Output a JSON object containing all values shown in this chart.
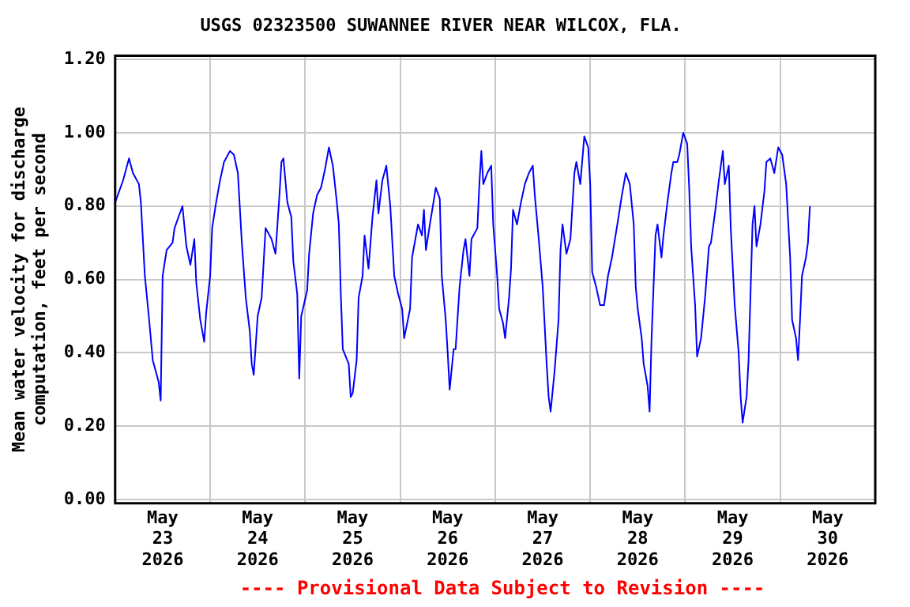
{
  "chart_data": {
    "type": "line",
    "title": "USGS 02323500 SUWANNEE RIVER NEAR WILCOX, FLA.",
    "ylabel": "Mean water velocity for discharge\ncomputation, feet per second",
    "annotations": [
      "---- Provisional Data Subject to Revision ----"
    ],
    "xlim": [
      "2026-05-23T00:00",
      "2026-05-31T00:00"
    ],
    "xticks": [
      {
        "value": "2026-05-23T00:00",
        "label": null
      },
      {
        "value": "2026-05-23T12:00",
        "label": "May\n23\n2026"
      },
      {
        "value": "2026-05-24T00:00",
        "label": null
      },
      {
        "value": "2026-05-24T12:00",
        "label": "May\n24\n2026"
      },
      {
        "value": "2026-05-25T00:00",
        "label": null
      },
      {
        "value": "2026-05-25T12:00",
        "label": "May\n25\n2026"
      },
      {
        "value": "2026-05-26T00:00",
        "label": null
      },
      {
        "value": "2026-05-26T12:00",
        "label": "May\n26\n2026"
      },
      {
        "value": "2026-05-27T00:00",
        "label": null
      },
      {
        "value": "2026-05-27T12:00",
        "label": "May\n27\n2026"
      },
      {
        "value": "2026-05-28T00:00",
        "label": null
      },
      {
        "value": "2026-05-28T12:00",
        "label": "May\n28\n2026"
      },
      {
        "value": "2026-05-29T00:00",
        "label": null
      },
      {
        "value": "2026-05-29T12:00",
        "label": "May\n29\n2026"
      },
      {
        "value": "2026-05-30T00:00",
        "label": null
      },
      {
        "value": "2026-05-30T12:00",
        "label": "May\n30\n2026"
      },
      {
        "value": "2026-05-31T00:00",
        "label": null
      }
    ],
    "ylim": [
      -0.01,
      1.21
    ],
    "yticks": [
      {
        "value": 0,
        "label": "0.00"
      },
      {
        "value": 0.2,
        "label": "0.20"
      },
      {
        "value": 0.4,
        "label": "0.40"
      },
      {
        "value": 0.6,
        "label": "0.60"
      },
      {
        "value": 0.8,
        "label": "0.80"
      },
      {
        "value": 1.0,
        "label": "1.00"
      },
      {
        "value": 1.2,
        "label": "1.20"
      }
    ],
    "grid": true,
    "legend": false,
    "marker": "none",
    "line_style": "solid",
    "x": [
      "2026-05-23T00:00",
      "2026-05-23T02:00",
      "2026-05-23T03:30",
      "2026-05-23T04:30",
      "2026-05-23T06:00",
      "2026-05-23T06:30",
      "2026-05-23T07:30",
      "2026-05-23T08:30",
      "2026-05-23T09:30",
      "2026-05-23T11:00",
      "2026-05-23T11:30",
      "2026-05-23T12:00",
      "2026-05-23T13:00",
      "2026-05-23T14:30",
      "2026-05-23T15:00",
      "2026-05-23T17:00",
      "2026-05-23T18:00",
      "2026-05-23T19:00",
      "2026-05-23T20:00",
      "2026-05-23T20:30",
      "2026-05-23T21:30",
      "2026-05-23T22:30",
      "2026-05-23T23:00",
      "2026-05-24T00:00",
      "2026-05-24T00:30",
      "2026-05-24T01:30",
      "2026-05-24T02:30",
      "2026-05-24T03:30",
      "2026-05-24T05:00",
      "2026-05-24T06:00",
      "2026-05-24T07:00",
      "2026-05-24T08:00",
      "2026-05-24T09:00",
      "2026-05-24T10:00",
      "2026-05-24T10:30",
      "2026-05-24T11:00",
      "2026-05-24T12:00",
      "2026-05-24T13:00",
      "2026-05-24T14:00",
      "2026-05-24T15:30",
      "2026-05-24T16:30",
      "2026-05-24T17:00",
      "2026-05-24T17:30",
      "2026-05-24T18:00",
      "2026-05-24T18:30",
      "2026-05-24T19:30",
      "2026-05-24T20:30",
      "2026-05-24T21:00",
      "2026-05-24T22:00",
      "2026-05-24T22:30",
      "2026-05-24T23:00",
      "2026-05-25T00:30",
      "2026-05-25T01:00",
      "2026-05-25T02:00",
      "2026-05-25T03:00",
      "2026-05-25T04:00",
      "2026-05-25T05:00",
      "2026-05-25T06:00",
      "2026-05-25T07:00",
      "2026-05-25T08:00",
      "2026-05-25T08:30",
      "2026-05-25T09:00",
      "2026-05-25T09:30",
      "2026-05-25T11:00",
      "2026-05-25T11:30",
      "2026-05-25T12:00",
      "2026-05-25T13:00",
      "2026-05-25T13:30",
      "2026-05-25T14:30",
      "2026-05-25T15:00",
      "2026-05-25T16:00",
      "2026-05-25T17:00",
      "2026-05-25T18:00",
      "2026-05-25T18:30",
      "2026-05-25T19:30",
      "2026-05-25T20:30",
      "2026-05-25T21:30",
      "2026-05-25T22:30",
      "2026-05-25T23:30",
      "2026-05-26T00:30",
      "2026-05-26T01:00",
      "2026-05-26T02:30",
      "2026-05-26T03:00",
      "2026-05-26T04:30",
      "2026-05-26T05:30",
      "2026-05-26T06:00",
      "2026-05-26T06:30",
      "2026-05-26T07:30",
      "2026-05-26T09:00",
      "2026-05-26T10:00",
      "2026-05-26T10:30",
      "2026-05-26T11:30",
      "2026-05-26T12:00",
      "2026-05-26T12:30",
      "2026-05-26T13:30",
      "2026-05-26T14:00",
      "2026-05-26T15:00",
      "2026-05-26T16:00",
      "2026-05-26T16:30",
      "2026-05-26T17:30",
      "2026-05-26T18:00",
      "2026-05-26T19:30",
      "2026-05-26T20:00",
      "2026-05-26T20:30",
      "2026-05-26T21:00",
      "2026-05-26T22:00",
      "2026-05-26T23:00",
      "2026-05-26T23:30",
      "2026-05-27T00:30",
      "2026-05-27T01:00",
      "2026-05-27T02:00",
      "2026-05-27T02:30",
      "2026-05-27T03:30",
      "2026-05-27T04:00",
      "2026-05-27T04:30",
      "2026-05-27T05:30",
      "2026-05-27T06:30",
      "2026-05-27T07:30",
      "2026-05-27T08:30",
      "2026-05-27T09:30",
      "2026-05-27T10:00",
      "2026-05-27T11:00",
      "2026-05-27T12:00",
      "2026-05-27T13:00",
      "2026-05-27T13:30",
      "2026-05-27T14:00",
      "2026-05-27T15:00",
      "2026-05-27T16:00",
      "2026-05-27T16:30",
      "2026-05-27T17:00",
      "2026-05-27T18:00",
      "2026-05-27T19:00",
      "2026-05-27T20:00",
      "2026-05-27T20:30",
      "2026-05-27T21:30",
      "2026-05-27T22:30",
      "2026-05-27T23:30",
      "2026-05-28T00:00",
      "2026-05-28T00:30",
      "2026-05-28T01:30",
      "2026-05-28T02:30",
      "2026-05-28T03:30",
      "2026-05-28T04:30",
      "2026-05-28T05:30",
      "2026-05-28T07:00",
      "2026-05-28T08:00",
      "2026-05-28T09:00",
      "2026-05-28T10:00",
      "2026-05-28T11:00",
      "2026-05-28T11:30",
      "2026-05-28T12:00",
      "2026-05-28T13:00",
      "2026-05-28T13:30",
      "2026-05-28T14:30",
      "2026-05-28T15:00",
      "2026-05-28T15:30",
      "2026-05-28T16:30",
      "2026-05-28T17:00",
      "2026-05-28T18:00",
      "2026-05-28T18:30",
      "2026-05-28T19:30",
      "2026-05-28T20:30",
      "2026-05-28T21:00",
      "2026-05-28T22:00",
      "2026-05-28T22:30",
      "2026-05-28T23:30",
      "2026-05-29T00:30",
      "2026-05-29T01:00",
      "2026-05-29T01:30",
      "2026-05-29T02:30",
      "2026-05-29T03:00",
      "2026-05-29T04:00",
      "2026-05-29T05:00",
      "2026-05-29T06:00",
      "2026-05-29T06:30",
      "2026-05-29T07:30",
      "2026-05-29T08:30",
      "2026-05-29T09:30",
      "2026-05-29T10:00",
      "2026-05-29T11:00",
      "2026-05-29T11:30",
      "2026-05-29T12:30",
      "2026-05-29T13:30",
      "2026-05-29T14:00",
      "2026-05-29T14:30",
      "2026-05-29T15:30",
      "2026-05-29T16:00",
      "2026-05-29T17:00",
      "2026-05-29T17:30",
      "2026-05-29T18:00",
      "2026-05-29T19:00",
      "2026-05-29T20:00",
      "2026-05-29T20:30",
      "2026-05-29T21:30",
      "2026-05-29T22:30",
      "2026-05-29T23:30",
      "2026-05-30T00:30",
      "2026-05-30T01:30",
      "2026-05-30T02:30",
      "2026-05-30T03:00",
      "2026-05-30T04:00",
      "2026-05-30T04:30",
      "2026-05-30T05:00",
      "2026-05-30T05:30",
      "2026-05-30T06:30",
      "2026-05-30T07:00",
      "2026-05-30T07:30"
    ],
    "series": [
      {
        "color": "#0000ff",
        "values": [
          0.81,
          0.87,
          0.93,
          0.89,
          0.86,
          0.81,
          0.61,
          0.5,
          0.38,
          0.32,
          0.27,
          0.61,
          0.68,
          0.7,
          0.74,
          0.8,
          0.69,
          0.64,
          0.71,
          0.59,
          0.49,
          0.43,
          0.51,
          0.61,
          0.74,
          0.81,
          0.87,
          0.92,
          0.95,
          0.94,
          0.89,
          0.7,
          0.55,
          0.46,
          0.37,
          0.34,
          0.5,
          0.55,
          0.74,
          0.71,
          0.67,
          0.75,
          0.83,
          0.92,
          0.93,
          0.81,
          0.77,
          0.65,
          0.56,
          0.33,
          0.5,
          0.57,
          0.67,
          0.78,
          0.83,
          0.85,
          0.9,
          0.96,
          0.91,
          0.81,
          0.75,
          0.56,
          0.41,
          0.37,
          0.28,
          0.29,
          0.38,
          0.55,
          0.61,
          0.72,
          0.63,
          0.77,
          0.87,
          0.78,
          0.87,
          0.91,
          0.8,
          0.61,
          0.56,
          0.52,
          0.44,
          0.52,
          0.66,
          0.75,
          0.72,
          0.79,
          0.68,
          0.75,
          0.85,
          0.82,
          0.61,
          0.49,
          0.4,
          0.3,
          0.41,
          0.41,
          0.58,
          0.68,
          0.71,
          0.61,
          0.71,
          0.74,
          0.86,
          0.95,
          0.86,
          0.89,
          0.91,
          0.75,
          0.61,
          0.52,
          0.48,
          0.44,
          0.55,
          0.63,
          0.79,
          0.75,
          0.81,
          0.86,
          0.89,
          0.91,
          0.83,
          0.71,
          0.58,
          0.37,
          0.28,
          0.24,
          0.35,
          0.49,
          0.68,
          0.75,
          0.67,
          0.71,
          0.89,
          0.92,
          0.86,
          0.99,
          0.96,
          0.86,
          0.62,
          0.58,
          0.53,
          0.53,
          0.61,
          0.66,
          0.76,
          0.83,
          0.89,
          0.86,
          0.75,
          0.58,
          0.52,
          0.44,
          0.37,
          0.31,
          0.24,
          0.44,
          0.72,
          0.75,
          0.66,
          0.72,
          0.81,
          0.89,
          0.92,
          0.92,
          0.94,
          1.0,
          0.97,
          0.85,
          0.69,
          0.53,
          0.39,
          0.44,
          0.55,
          0.69,
          0.7,
          0.78,
          0.87,
          0.95,
          0.86,
          0.91,
          0.74,
          0.53,
          0.4,
          0.28,
          0.21,
          0.28,
          0.38,
          0.75,
          0.8,
          0.69,
          0.75,
          0.84,
          0.92,
          0.93,
          0.89,
          0.96,
          0.94,
          0.86,
          0.66,
          0.49,
          0.44,
          0.38,
          0.49,
          0.61,
          0.66,
          0.7,
          0.8
        ]
      }
    ]
  }
}
